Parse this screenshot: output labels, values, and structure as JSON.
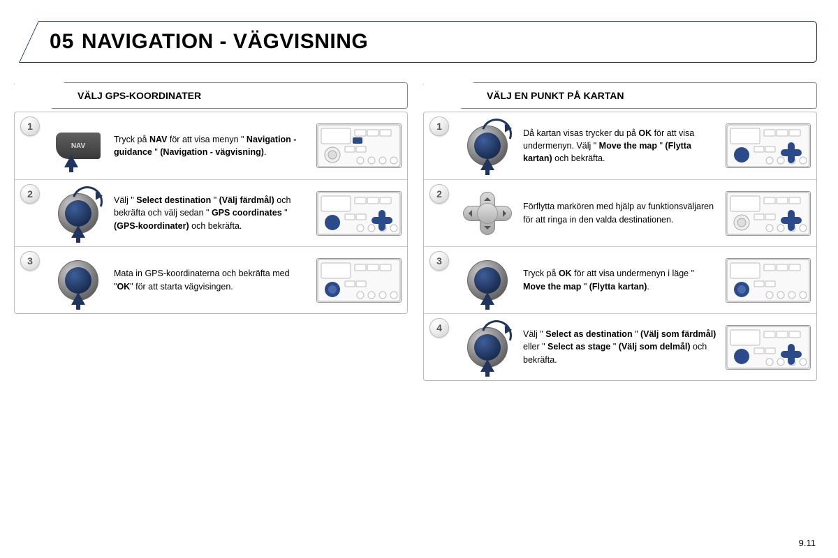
{
  "header": {
    "section_no": "05",
    "title": "NAVIGATION - VÄGVISNING"
  },
  "page_number": "9.11",
  "colors": {
    "accent": "#1f355d",
    "frame": "#1a3a6e",
    "border": "#999999"
  },
  "left": {
    "heading": "VÄLJ GPS-KOORDINATER",
    "steps": [
      {
        "n": "1",
        "icon": "nav-button",
        "panel": "panel-nav",
        "html": "Tryck på <b>NAV</b> för att visa menyn \" <b>Navigation - guidance</b> \" <b>(Navigation - vägvisning)</b>."
      },
      {
        "n": "2",
        "icon": "dial-rotate",
        "panel": "panel-dial-dpad",
        "html": "Välj \" <b>Select destination</b> \" <b>(Välj färdmål)</b> och bekräfta och välj sedan \" <b>GPS coordinates</b> \" <b>(GPS-koordinater)</b> och bekräfta."
      },
      {
        "n": "3",
        "icon": "dial-press",
        "panel": "panel-dial",
        "html": "Mata in GPS-koordinaterna och bekräfta med \"<b>OK</b>\" för att starta vägvisingen."
      }
    ]
  },
  "right": {
    "heading": "VÄLJ EN PUNKT PÅ KARTAN",
    "steps": [
      {
        "n": "1",
        "icon": "dial-rotate",
        "panel": "panel-dial-dpad",
        "html": "Då kartan visas trycker du på <b>OK</b> för att visa undermenyn. Välj \" <b>Move the map</b> \" <b>(Flytta kartan)</b> och bekräfta."
      },
      {
        "n": "2",
        "icon": "dpad",
        "panel": "panel-dpad",
        "html": "Förflytta markören med hjälp av funktionsväljaren för att ringa in den valda destinationen."
      },
      {
        "n": "3",
        "icon": "dial-press",
        "panel": "panel-dial",
        "html": "Tryck på <b>OK</b> för att visa undermenyn i läge \" <b>Move the map</b> \" <b>(Flytta kartan)</b>."
      },
      {
        "n": "4",
        "icon": "dial-rotate",
        "panel": "panel-dial-dpad",
        "html": "Välj \" <b>Select as destination</b> \" <b>(Välj som färdmål)</b> eller \" <b>Select as stage</b> \" <b>(Välj som delmål)</b> och bekräfta."
      }
    ]
  }
}
